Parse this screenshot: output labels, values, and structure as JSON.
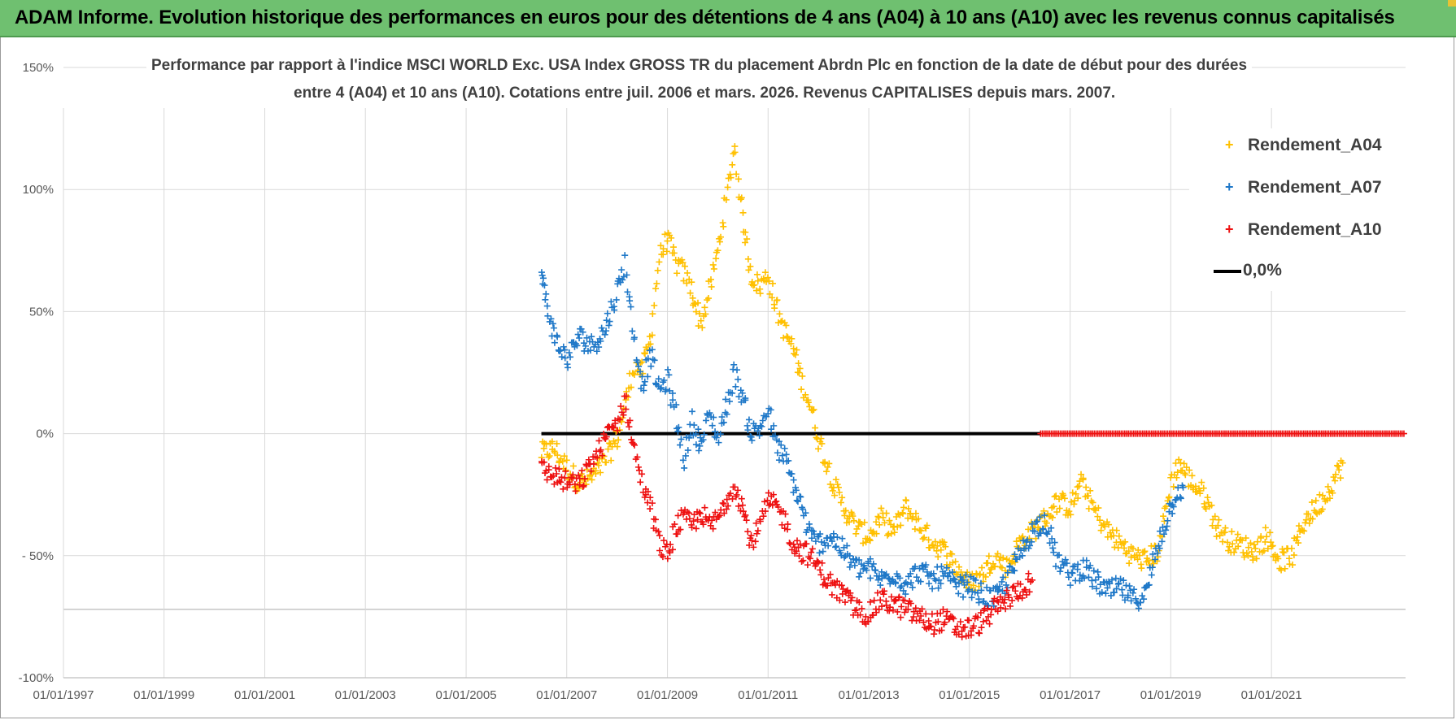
{
  "banner": {
    "title": "ADAM Informe. Evolution historique des performances en euros pour des détentions de 4 ans (A04) à 10 ans (A10) avec les revenus connus capitalisés"
  },
  "chart_data": {
    "type": "scatter",
    "title_line1": "Performance par rapport à l'indice MSCI WORLD Exc. USA Index GROSS TR  du placement Abrdn Plc en fonction de la date de début pour des durées",
    "title_line2": "entre 4 (A04) et 10 ans (A10). Cotations entre juil. 2006 et mars. 2026. Revenus CAPITALISES depuis mars. 2007.",
    "x_tick_labels": [
      "01/01/1997",
      "01/01/1999",
      "01/01/2001",
      "01/01/2003",
      "01/01/2005",
      "01/01/2007",
      "01/01/2009",
      "01/01/2011",
      "01/01/2013",
      "01/01/2015",
      "01/01/2017",
      "01/01/2019",
      "01/01/2021"
    ],
    "x_range": [
      "1997-01-01",
      "2023-09-01"
    ],
    "y_tick_labels": [
      "150%",
      "100%",
      "50%",
      "0%",
      "- 50%",
      "-100%"
    ],
    "ylim": [
      -100,
      150
    ],
    "grid": true,
    "legend_position": "top-right",
    "series": [
      {
        "name": "Rendement_A04",
        "color": "#ffc000",
        "marker": "+",
        "points": [
          [
            "2006-07-01",
            -8
          ],
          [
            "2006-10-01",
            -6
          ],
          [
            "2007-01-01",
            -14
          ],
          [
            "2007-04-01",
            -20
          ],
          [
            "2007-07-01",
            -18
          ],
          [
            "2007-10-01",
            -12
          ],
          [
            "2008-01-01",
            -2
          ],
          [
            "2008-03-01",
            12
          ],
          [
            "2008-05-01",
            28
          ],
          [
            "2008-07-01",
            25
          ],
          [
            "2008-09-01",
            40
          ],
          [
            "2008-11-01",
            72
          ],
          [
            "2009-01-01",
            80
          ],
          [
            "2009-03-01",
            70
          ],
          [
            "2009-05-01",
            66
          ],
          [
            "2009-07-01",
            58
          ],
          [
            "2009-09-01",
            45
          ],
          [
            "2009-11-01",
            58
          ],
          [
            "2010-01-01",
            75
          ],
          [
            "2010-03-01",
            95
          ],
          [
            "2010-05-01",
            118
          ],
          [
            "2010-07-01",
            88
          ],
          [
            "2010-09-01",
            65
          ],
          [
            "2010-11-01",
            60
          ],
          [
            "2011-01-01",
            65
          ],
          [
            "2011-03-01",
            52
          ],
          [
            "2011-05-01",
            42
          ],
          [
            "2011-07-01",
            35
          ],
          [
            "2011-09-01",
            22
          ],
          [
            "2011-11-01",
            12
          ],
          [
            "2012-01-01",
            -2
          ],
          [
            "2012-03-01",
            -12
          ],
          [
            "2012-05-01",
            -22
          ],
          [
            "2012-07-01",
            -30
          ],
          [
            "2012-09-01",
            -36
          ],
          [
            "2012-11-01",
            -40
          ],
          [
            "2013-01-01",
            -42
          ],
          [
            "2013-04-01",
            -35
          ],
          [
            "2013-07-01",
            -40
          ],
          [
            "2013-10-01",
            -30
          ],
          [
            "2014-01-01",
            -38
          ],
          [
            "2014-04-01",
            -44
          ],
          [
            "2014-07-01",
            -48
          ],
          [
            "2014-10-01",
            -55
          ],
          [
            "2015-01-01",
            -62
          ],
          [
            "2015-04-01",
            -58
          ],
          [
            "2015-07-01",
            -50
          ],
          [
            "2015-10-01",
            -55
          ],
          [
            "2016-01-01",
            -45
          ],
          [
            "2016-04-01",
            -40
          ],
          [
            "2016-07-01",
            -35
          ],
          [
            "2016-10-01",
            -28
          ],
          [
            "2017-01-01",
            -30
          ],
          [
            "2017-04-01",
            -20
          ],
          [
            "2017-07-01",
            -32
          ],
          [
            "2017-10-01",
            -40
          ],
          [
            "2018-01-01",
            -45
          ],
          [
            "2018-04-01",
            -50
          ],
          [
            "2018-07-01",
            -52
          ],
          [
            "2018-10-01",
            -48
          ],
          [
            "2019-01-01",
            -20
          ],
          [
            "2019-03-01",
            -12
          ],
          [
            "2019-06-01",
            -20
          ],
          [
            "2019-09-01",
            -25
          ],
          [
            "2019-12-01",
            -38
          ],
          [
            "2020-03-01",
            -44
          ],
          [
            "2020-06-01",
            -46
          ],
          [
            "2020-09-01",
            -48
          ],
          [
            "2020-12-01",
            -42
          ],
          [
            "2021-03-01",
            -52
          ],
          [
            "2021-06-01",
            -50
          ],
          [
            "2021-09-01",
            -35
          ],
          [
            "2021-12-01",
            -30
          ],
          [
            "2022-03-01",
            -22
          ],
          [
            "2022-06-01",
            -12
          ]
        ]
      },
      {
        "name": "Rendement_A07",
        "color": "#1f78c8",
        "marker": "+",
        "points": [
          [
            "2006-07-01",
            65
          ],
          [
            "2006-08-01",
            55
          ],
          [
            "2006-10-01",
            40
          ],
          [
            "2007-01-01",
            30
          ],
          [
            "2007-04-01",
            40
          ],
          [
            "2007-07-01",
            36
          ],
          [
            "2007-10-01",
            42
          ],
          [
            "2008-01-01",
            58
          ],
          [
            "2008-03-01",
            70
          ],
          [
            "2008-05-01",
            40
          ],
          [
            "2008-07-01",
            20
          ],
          [
            "2008-09-01",
            32
          ],
          [
            "2008-11-01",
            18
          ],
          [
            "2009-01-01",
            22
          ],
          [
            "2009-03-01",
            8
          ],
          [
            "2009-05-01",
            -10
          ],
          [
            "2009-07-01",
            5
          ],
          [
            "2009-09-01",
            -5
          ],
          [
            "2009-11-01",
            8
          ],
          [
            "2010-01-01",
            -2
          ],
          [
            "2010-03-01",
            10
          ],
          [
            "2010-05-01",
            25
          ],
          [
            "2010-07-01",
            15
          ],
          [
            "2010-09-01",
            0
          ],
          [
            "2010-11-01",
            2
          ],
          [
            "2011-01-01",
            10
          ],
          [
            "2011-03-01",
            -5
          ],
          [
            "2011-05-01",
            -10
          ],
          [
            "2011-07-01",
            -20
          ],
          [
            "2011-09-01",
            -30
          ],
          [
            "2011-11-01",
            -42
          ],
          [
            "2012-01-01",
            -45
          ],
          [
            "2012-04-01",
            -42
          ],
          [
            "2012-07-01",
            -48
          ],
          [
            "2012-10-01",
            -55
          ],
          [
            "2013-01-01",
            -55
          ],
          [
            "2013-04-01",
            -60
          ],
          [
            "2013-07-01",
            -57
          ],
          [
            "2013-10-01",
            -62
          ],
          [
            "2014-01-01",
            -56
          ],
          [
            "2014-04-01",
            -60
          ],
          [
            "2014-07-01",
            -58
          ],
          [
            "2014-10-01",
            -63
          ],
          [
            "2015-01-01",
            -62
          ],
          [
            "2015-04-01",
            -66
          ],
          [
            "2015-07-01",
            -68
          ],
          [
            "2015-10-01",
            -60
          ],
          [
            "2016-01-01",
            -50
          ],
          [
            "2016-04-01",
            -40
          ],
          [
            "2016-07-01",
            -35
          ],
          [
            "2016-10-01",
            -52
          ],
          [
            "2017-01-01",
            -58
          ],
          [
            "2017-04-01",
            -55
          ],
          [
            "2017-07-01",
            -60
          ],
          [
            "2017-10-01",
            -65
          ],
          [
            "2018-01-01",
            -63
          ],
          [
            "2018-04-01",
            -68
          ],
          [
            "2018-07-01",
            -66
          ],
          [
            "2018-10-01",
            -45
          ],
          [
            "2018-12-01",
            -35
          ],
          [
            "2019-02-01",
            -25
          ],
          [
            "2019-04-01",
            -22
          ]
        ]
      },
      {
        "name": "Rendement_A10",
        "color": "#ee1111",
        "marker": "+",
        "points": [
          [
            "2006-07-01",
            -15
          ],
          [
            "2006-10-01",
            -17
          ],
          [
            "2007-01-01",
            -20
          ],
          [
            "2007-04-01",
            -21
          ],
          [
            "2007-07-01",
            -12
          ],
          [
            "2007-10-01",
            -3
          ],
          [
            "2008-01-01",
            5
          ],
          [
            "2008-03-01",
            14
          ],
          [
            "2008-05-01",
            -5
          ],
          [
            "2008-07-01",
            -20
          ],
          [
            "2008-09-01",
            -30
          ],
          [
            "2008-11-01",
            -45
          ],
          [
            "2009-01-01",
            -50
          ],
          [
            "2009-03-01",
            -38
          ],
          [
            "2009-05-01",
            -35
          ],
          [
            "2009-07-01",
            -38
          ],
          [
            "2009-09-01",
            -32
          ],
          [
            "2009-11-01",
            -38
          ],
          [
            "2010-01-01",
            -35
          ],
          [
            "2010-03-01",
            -28
          ],
          [
            "2010-05-01",
            -20
          ],
          [
            "2010-07-01",
            -30
          ],
          [
            "2010-09-01",
            -45
          ],
          [
            "2010-11-01",
            -38
          ],
          [
            "2011-01-01",
            -28
          ],
          [
            "2011-03-01",
            -30
          ],
          [
            "2011-05-01",
            -35
          ],
          [
            "2011-07-01",
            -45
          ],
          [
            "2011-09-01",
            -48
          ],
          [
            "2011-11-01",
            -50
          ],
          [
            "2012-01-01",
            -55
          ],
          [
            "2012-04-01",
            -62
          ],
          [
            "2012-07-01",
            -66
          ],
          [
            "2012-10-01",
            -72
          ],
          [
            "2013-01-01",
            -74
          ],
          [
            "2013-04-01",
            -68
          ],
          [
            "2013-07-01",
            -70
          ],
          [
            "2013-10-01",
            -72
          ],
          [
            "2014-01-01",
            -75
          ],
          [
            "2014-04-01",
            -78
          ],
          [
            "2014-07-01",
            -76
          ],
          [
            "2014-10-01",
            -80
          ],
          [
            "2015-01-01",
            -80
          ],
          [
            "2015-04-01",
            -77
          ],
          [
            "2015-07-01",
            -72
          ],
          [
            "2015-10-01",
            -68
          ],
          [
            "2016-01-01",
            -64
          ],
          [
            "2016-04-01",
            -60
          ]
        ]
      },
      {
        "name": "0,0%",
        "color": "#000000",
        "marker": "line",
        "points": [
          [
            "2006-07-01",
            0
          ],
          [
            "2016-06-01",
            0
          ]
        ]
      }
    ],
    "extra_markers": {
      "series": "Rendement_A10",
      "note_range": [
        "2016-06-01",
        "2023-09-01"
      ],
      "value": 0
    }
  }
}
